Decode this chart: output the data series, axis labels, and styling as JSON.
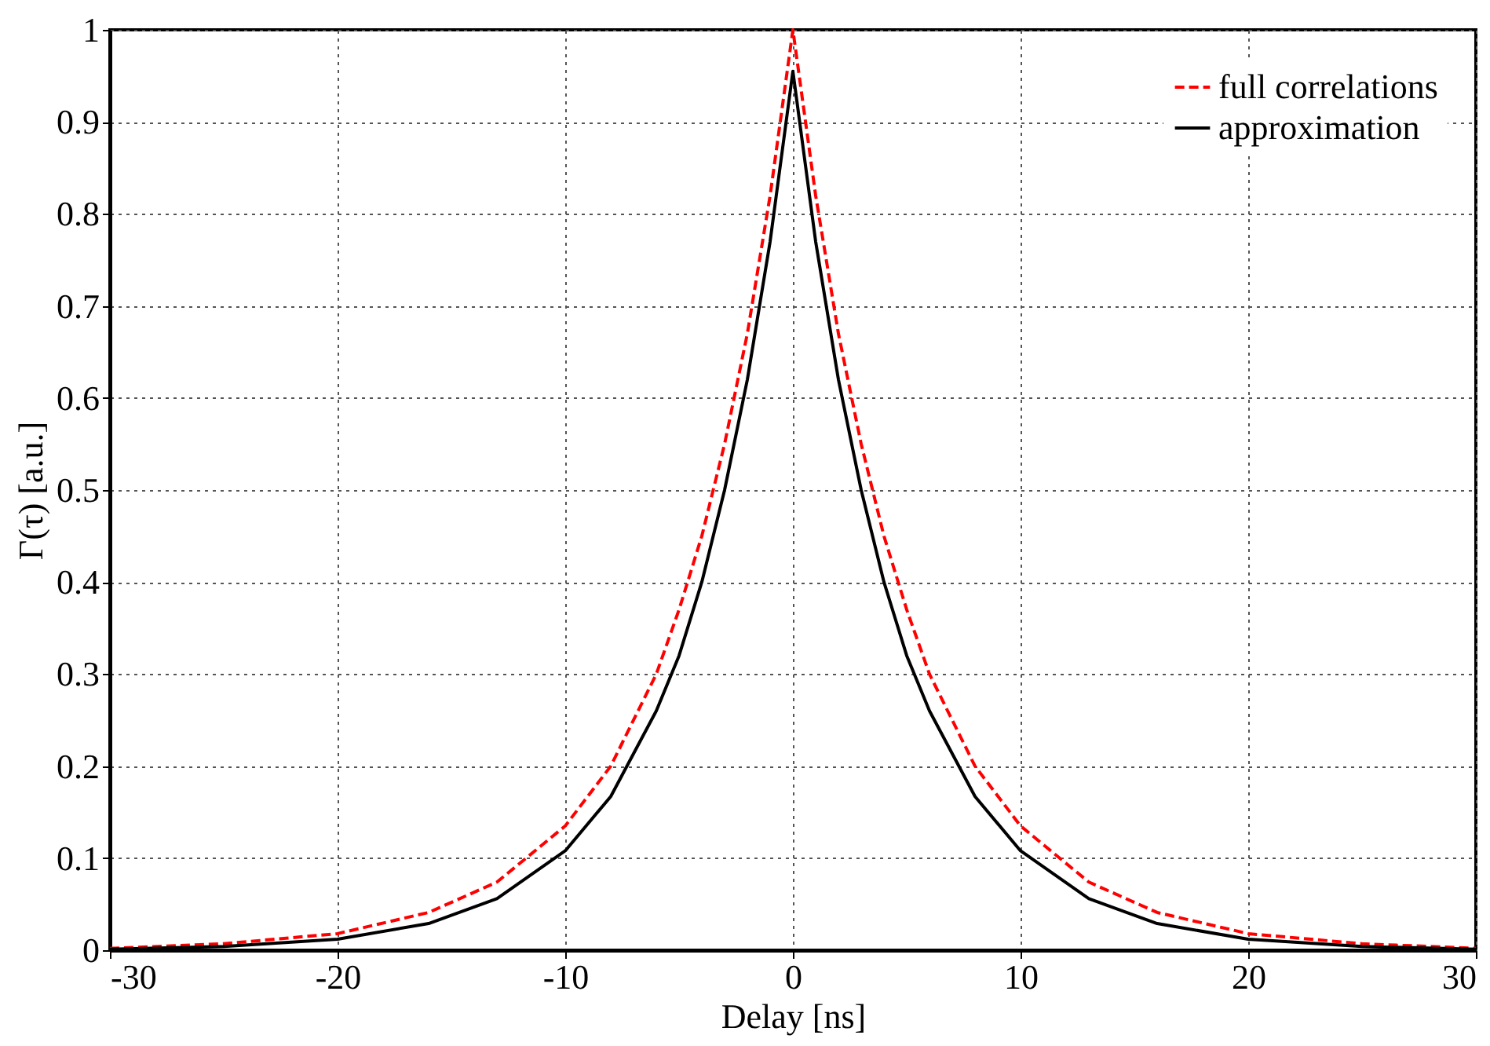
{
  "chart_data": {
    "type": "line",
    "xlabel": "Delay [ns]",
    "ylabel": "Γ(τ) [a.u.]",
    "x": [
      -30,
      -25,
      -20,
      -16,
      -13,
      -10,
      -8,
      -6,
      -5,
      -4,
      -3,
      -2,
      -1,
      0,
      1,
      2,
      3,
      4,
      5,
      6,
      8,
      10,
      13,
      16,
      20,
      25,
      30
    ],
    "series": [
      {
        "name": "full correlations",
        "color": "#ff0000",
        "line_style": "dashed",
        "values": [
          0.002,
          0.007,
          0.018,
          0.041,
          0.074,
          0.135,
          0.2,
          0.3,
          0.37,
          0.45,
          0.55,
          0.67,
          0.82,
          1.0,
          0.82,
          0.67,
          0.55,
          0.45,
          0.37,
          0.3,
          0.2,
          0.135,
          0.074,
          0.041,
          0.018,
          0.007,
          0.002
        ]
      },
      {
        "name": "approximation",
        "color": "#000000",
        "line_style": "solid",
        "values": [
          0.001,
          0.004,
          0.012,
          0.029,
          0.056,
          0.108,
          0.167,
          0.26,
          0.32,
          0.4,
          0.5,
          0.62,
          0.77,
          0.955,
          0.77,
          0.62,
          0.5,
          0.4,
          0.32,
          0.26,
          0.167,
          0.108,
          0.056,
          0.029,
          0.012,
          0.004,
          0.001
        ]
      }
    ],
    "xlim": [
      -30,
      30
    ],
    "xticks": [
      -30,
      -20,
      -10,
      0,
      10,
      20,
      30
    ],
    "ylim": [
      0,
      1
    ],
    "yticks": [
      0,
      0.1,
      0.2,
      0.3,
      0.4,
      0.5,
      0.6,
      0.7,
      0.8,
      0.9,
      1
    ],
    "grid": true,
    "legend": "top right",
    "marker": "none"
  }
}
